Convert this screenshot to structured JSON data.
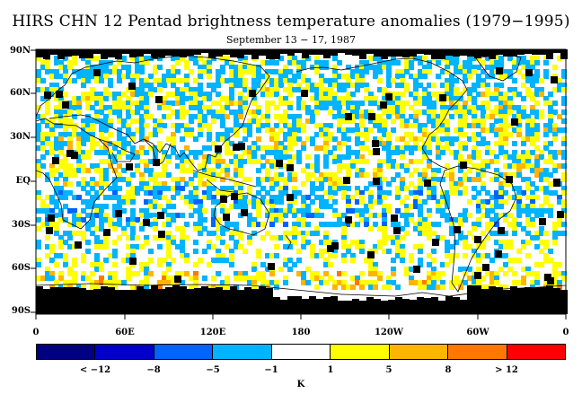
{
  "title": "HIRS CHN 12 Pentad brightness temperature anomalies (1979−1995)",
  "subtitle": "September 13 − 17, 1987",
  "lat_labels": [
    "90N",
    "60N",
    "30N",
    "EQ",
    "30S",
    "60S",
    "90S"
  ],
  "lon_labels": [
    "0",
    "60E",
    "120E",
    "180",
    "120W",
    "60W",
    "0"
  ],
  "colorbar": {
    "colors": [
      "#000080",
      "#0000c8",
      "#0064ff",
      "#00b4ff",
      "#ffffff",
      "#ffff00",
      "#ffb400",
      "#ff7800",
      "#ff0000"
    ],
    "labels": [
      "< −12",
      "−8",
      "−5",
      "−1",
      "1",
      "5",
      "8",
      "> 12"
    ],
    "unit": "K"
  },
  "legend_colors": {
    "missing": "#000000",
    "coast": "#000000"
  }
}
